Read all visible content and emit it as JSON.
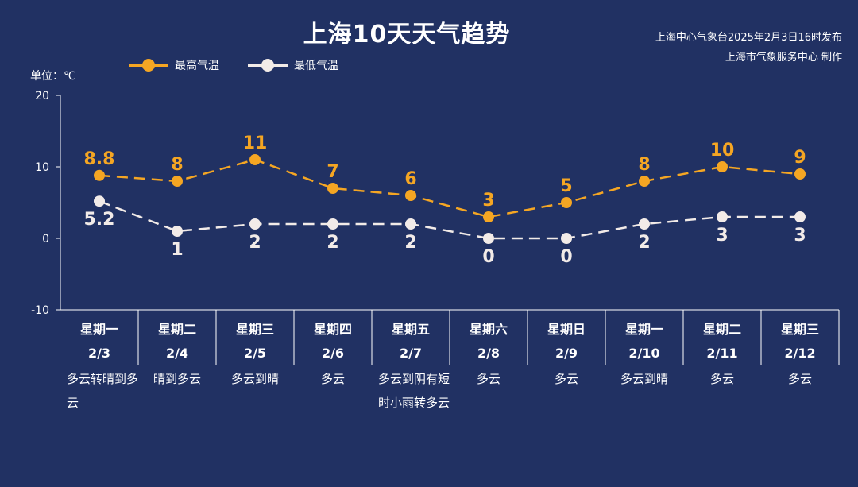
{
  "header": {
    "title": "上海10天天气趋势",
    "issuer_line1": "上海中心气象台2025年2月3日16时发布",
    "issuer_line2": "上海市气象服务中心 制作",
    "unit_label": "单位：℃"
  },
  "colors": {
    "background": "#213163",
    "high": "#f5a623",
    "low": "#f2ebe8",
    "axis": "#ffffff"
  },
  "chart_data": {
    "type": "line",
    "ylim": [
      -10,
      20
    ],
    "yticks": [
      -10,
      0,
      10,
      20
    ],
    "legend_position": "top-left",
    "categories": [
      "2/3",
      "2/4",
      "2/5",
      "2/6",
      "2/7",
      "2/8",
      "2/9",
      "2/10",
      "2/11",
      "2/12"
    ],
    "weekdays": [
      "星期一",
      "星期二",
      "星期三",
      "星期四",
      "星期五",
      "星期六",
      "星期日",
      "星期一",
      "星期二",
      "星期三"
    ],
    "weather": [
      "多云转晴到多云",
      "晴到多云",
      "多云到晴",
      "多云",
      "多云到阴有短时小雨转多云",
      "多云",
      "多云",
      "多云到晴",
      "多云",
      "多云"
    ],
    "series": [
      {
        "name": "最高气温",
        "values": [
          8.8,
          8,
          11,
          7,
          6,
          3,
          5,
          8,
          10,
          9
        ]
      },
      {
        "name": "最低气温",
        "values": [
          5.2,
          1,
          2,
          2,
          2,
          0,
          0,
          2,
          3,
          3
        ]
      }
    ]
  }
}
